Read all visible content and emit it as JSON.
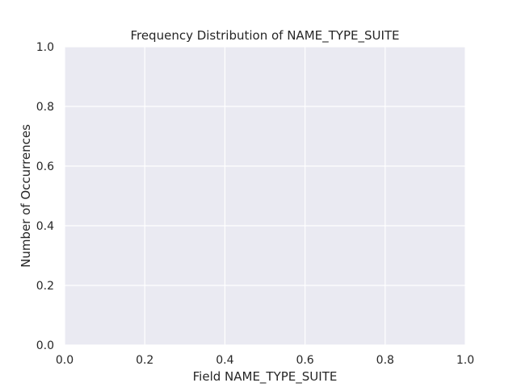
{
  "chart_data": {
    "type": "bar",
    "title": "Frequency Distribution of NAME_TYPE_SUITE",
    "xlabel": "Field NAME_TYPE_SUITE",
    "ylabel": "Number of Occurrences",
    "categories": [],
    "values": [],
    "xlim": [
      0.0,
      1.0
    ],
    "ylim": [
      0.0,
      1.0
    ],
    "xticks": [
      "0.0",
      "0.2",
      "0.4",
      "0.6",
      "0.8",
      "1.0"
    ],
    "yticks": [
      "0.0",
      "0.2",
      "0.4",
      "0.6",
      "0.8",
      "1.0"
    ],
    "grid": true,
    "colors": {
      "plot_background": "#eaeaf2",
      "grid": "#ffffff",
      "text": "#262626"
    }
  }
}
